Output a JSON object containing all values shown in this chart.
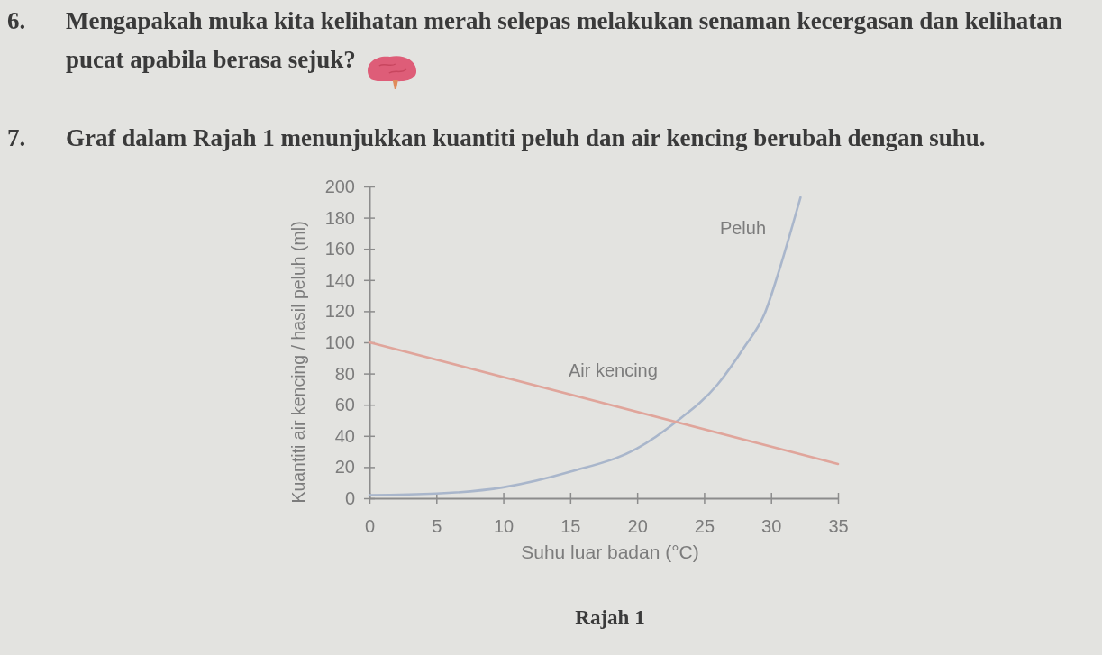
{
  "chart_data": {
    "type": "line",
    "title": "7. Graf dalam Rajah 1 menunjukkan kuantiti peluh dan air kencing berubah dengan suhu.",
    "annotations": [
      "6. Mengapakah muka kita kelihatan merah selepas melakukan senaman kecergasan dan kelihatan pucat apabila berasa sejuk?",
      "Rajah 1"
    ],
    "xlabel": "Suhu luar badan (°C)",
    "ylabel": "Kuantiti air kencing / hasil peluh (ml)",
    "xlim": [
      0,
      35
    ],
    "xticks": [
      0,
      5,
      10,
      15,
      20,
      25,
      30,
      35
    ],
    "ylim": [
      0,
      200
    ],
    "yticks": [
      0,
      20,
      40,
      60,
      80,
      100,
      120,
      140,
      160,
      180,
      200
    ],
    "series": [
      {
        "name": "Peluh",
        "color": "#a9b6cb",
        "x": [
          0,
          5,
          10,
          15,
          20,
          22.9,
          26,
          28,
          29.5,
          30.6,
          31.6,
          32.2
        ],
        "values": [
          2,
          3,
          7,
          17,
          32,
          49,
          73,
          97,
          118,
          146,
          175,
          193
        ]
      },
      {
        "name": "Air kencing",
        "color": "#e0a59b",
        "x": [
          0,
          35
        ],
        "values": [
          100,
          22
        ]
      }
    ]
  }
}
